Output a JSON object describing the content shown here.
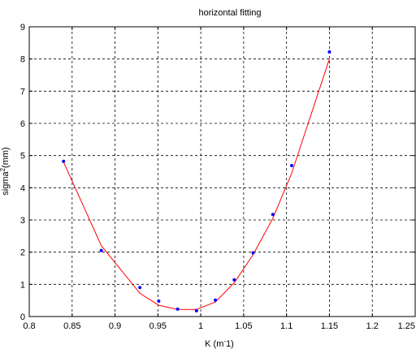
{
  "chart_data": {
    "type": "scatter",
    "title": "horizontal fitting",
    "xlabel": "K (m^-1)",
    "ylabel": "sigma^2(mm)",
    "xlim": [
      0.8,
      1.25
    ],
    "ylim": [
      0,
      9
    ],
    "xticks": [
      0.8,
      0.85,
      0.9,
      0.95,
      1,
      1.05,
      1.1,
      1.15,
      1.2,
      1.25
    ],
    "xtick_labels": [
      "0.8",
      "0.85",
      "0.9",
      "0.95",
      "1",
      "1.05",
      "1.1",
      "1.15",
      "1.2",
      "1.25"
    ],
    "yticks": [
      0,
      1,
      2,
      3,
      4,
      5,
      6,
      7,
      8,
      9
    ],
    "ytick_labels": [
      "0",
      "1",
      "2",
      "3",
      "4",
      "5",
      "6",
      "7",
      "8",
      "9"
    ],
    "grid": true,
    "series": [
      {
        "kind": "points",
        "color": "#0000ff",
        "x": [
          0.84,
          0.884,
          0.929,
          0.951,
          0.973,
          0.995,
          1.017,
          1.039,
          1.061,
          1.084,
          1.106,
          1.15
        ],
        "y": [
          4.82,
          2.05,
          0.9,
          0.48,
          0.23,
          0.18,
          0.51,
          1.14,
          1.98,
          3.17,
          4.69,
          8.22
        ]
      },
      {
        "kind": "fit-line",
        "color": "#ff0000",
        "x": [
          0.84,
          0.884,
          0.929,
          0.951,
          0.973,
          0.995,
          1.017,
          1.039,
          1.061,
          1.084,
          1.106,
          1.15
        ],
        "y": [
          4.8,
          2.2,
          0.72,
          0.35,
          0.22,
          0.22,
          0.45,
          1.05,
          1.92,
          3.05,
          4.45,
          8.0
        ]
      }
    ]
  }
}
